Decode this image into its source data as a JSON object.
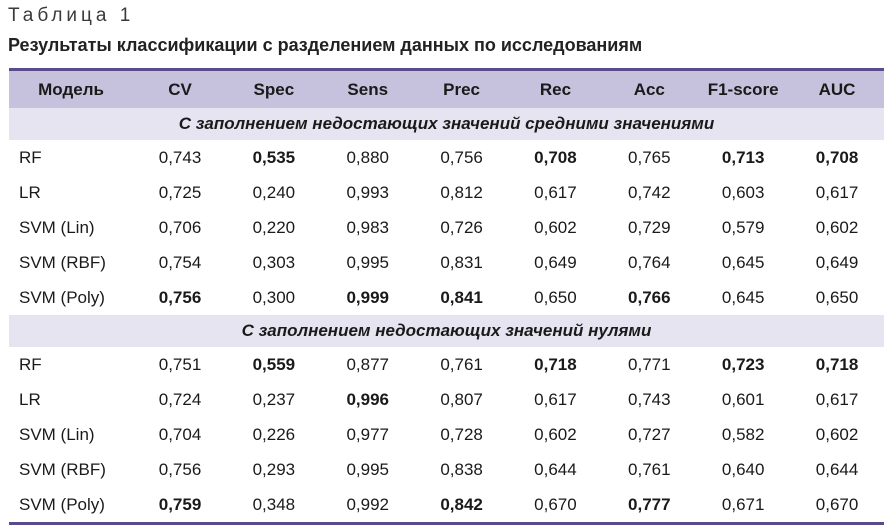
{
  "caption": "Таблица 1",
  "title": "Результаты классификации с разделением данных по исследованиям",
  "columns": [
    "Модель",
    "CV",
    "Spec",
    "Sens",
    "Prec",
    "Rec",
    "Acc",
    "F1-score",
    "AUC"
  ],
  "sections": [
    {
      "label": "С заполнением недостающих значений средними значениями",
      "rows": [
        {
          "cells": [
            "RF",
            "0,743",
            "0,535",
            "0,880",
            "0,756",
            "0,708",
            "0,765",
            "0,713",
            "0,708"
          ],
          "bold": [
            2,
            5,
            7,
            8
          ]
        },
        {
          "cells": [
            "LR",
            "0,725",
            "0,240",
            "0,993",
            "0,812",
            "0,617",
            "0,742",
            "0,603",
            "0,617"
          ],
          "bold": []
        },
        {
          "cells": [
            "SVM (Lin)",
            "0,706",
            "0,220",
            "0,983",
            "0,726",
            "0,602",
            "0,729",
            "0,579",
            "0,602"
          ],
          "bold": []
        },
        {
          "cells": [
            "SVM (RBF)",
            "0,754",
            "0,303",
            "0,995",
            "0,831",
            "0,649",
            "0,764",
            "0,645",
            "0,649"
          ],
          "bold": []
        },
        {
          "cells": [
            "SVM (Poly)",
            "0,756",
            "0,300",
            "0,999",
            "0,841",
            "0,650",
            "0,766",
            "0,645",
            "0,650"
          ],
          "bold": [
            1,
            3,
            4,
            6
          ]
        }
      ]
    },
    {
      "label": "С заполнением недостающих значений нулями",
      "rows": [
        {
          "cells": [
            "RF",
            "0,751",
            "0,559",
            "0,877",
            "0,761",
            "0,718",
            "0,771",
            "0,723",
            "0,718"
          ],
          "bold": [
            2,
            5,
            7,
            8
          ]
        },
        {
          "cells": [
            "LR",
            "0,724",
            "0,237",
            "0,996",
            "0,807",
            "0,617",
            "0,743",
            "0,601",
            "0,617"
          ],
          "bold": [
            3
          ]
        },
        {
          "cells": [
            "SVM (Lin)",
            "0,704",
            "0,226",
            "0,977",
            "0,728",
            "0,602",
            "0,727",
            "0,582",
            "0,602"
          ],
          "bold": []
        },
        {
          "cells": [
            "SVM (RBF)",
            "0,756",
            "0,293",
            "0,995",
            "0,838",
            "0,644",
            "0,761",
            "0,640",
            "0,644"
          ],
          "bold": []
        },
        {
          "cells": [
            "SVM (Poly)",
            "0,759",
            "0,348",
            "0,992",
            "0,842",
            "0,670",
            "0,777",
            "0,671",
            "0,670"
          ],
          "bold": [
            1,
            4,
            6
          ]
        }
      ]
    }
  ]
}
